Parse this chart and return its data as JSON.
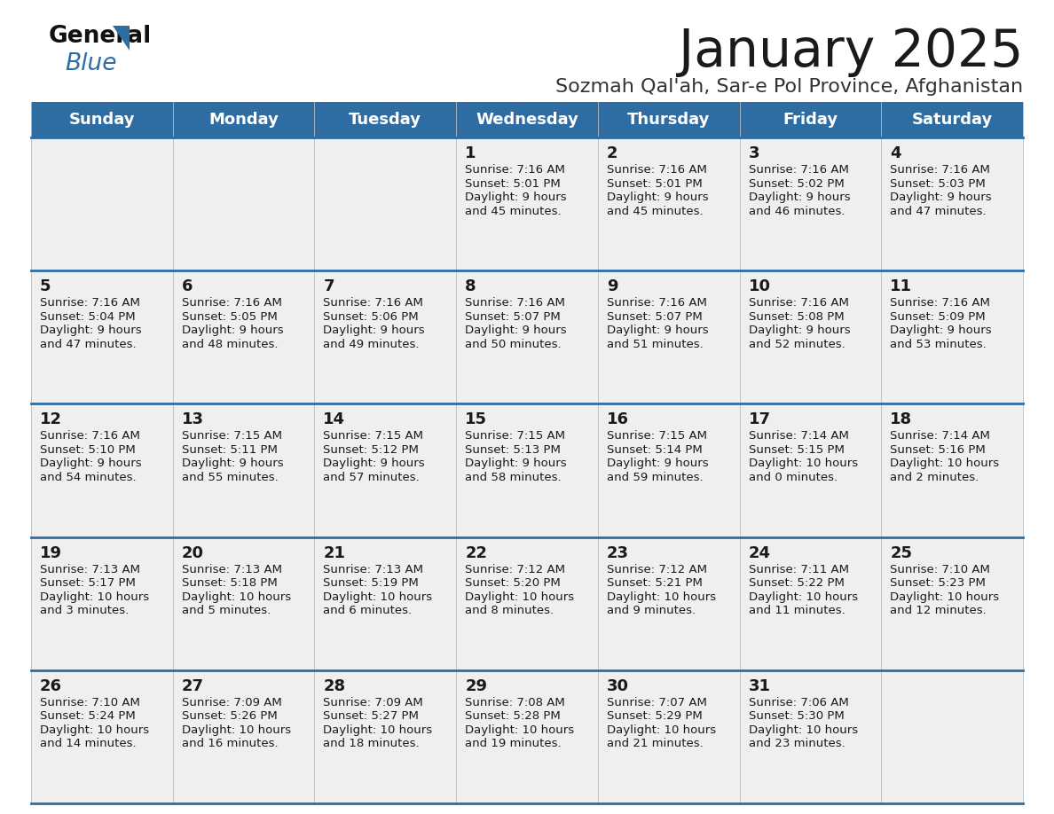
{
  "title": "January 2025",
  "subtitle": "Sozmah Qal'ah, Sar-e Pol Province, Afghanistan",
  "days_of_week": [
    "Sunday",
    "Monday",
    "Tuesday",
    "Wednesday",
    "Thursday",
    "Friday",
    "Saturday"
  ],
  "header_bg": "#2e6da4",
  "header_text": "#ffffff",
  "row_bg": "#efefef",
  "separator_color": "#2e6da4",
  "day_num_color": "#1a1a1a",
  "cell_text_color": "#1a1a1a",
  "title_color": "#1a1a1a",
  "subtitle_color": "#333333",
  "logo_general_color": "#111111",
  "logo_blue_color": "#2e6da4",
  "logo_triangle_color": "#2e6da4",
  "calendar": [
    [
      {
        "day": "",
        "sunrise": "",
        "sunset": "",
        "hours": "",
        "minutes": ""
      },
      {
        "day": "",
        "sunrise": "",
        "sunset": "",
        "hours": "",
        "minutes": ""
      },
      {
        "day": "",
        "sunrise": "",
        "sunset": "",
        "hours": "",
        "minutes": ""
      },
      {
        "day": "1",
        "sunrise": "7:16 AM",
        "sunset": "5:01 PM",
        "hours": "9",
        "minutes": "45"
      },
      {
        "day": "2",
        "sunrise": "7:16 AM",
        "sunset": "5:01 PM",
        "hours": "9",
        "minutes": "45"
      },
      {
        "day": "3",
        "sunrise": "7:16 AM",
        "sunset": "5:02 PM",
        "hours": "9",
        "minutes": "46"
      },
      {
        "day": "4",
        "sunrise": "7:16 AM",
        "sunset": "5:03 PM",
        "hours": "9",
        "minutes": "47"
      }
    ],
    [
      {
        "day": "5",
        "sunrise": "7:16 AM",
        "sunset": "5:04 PM",
        "hours": "9",
        "minutes": "47"
      },
      {
        "day": "6",
        "sunrise": "7:16 AM",
        "sunset": "5:05 PM",
        "hours": "9",
        "minutes": "48"
      },
      {
        "day": "7",
        "sunrise": "7:16 AM",
        "sunset": "5:06 PM",
        "hours": "9",
        "minutes": "49"
      },
      {
        "day": "8",
        "sunrise": "7:16 AM",
        "sunset": "5:07 PM",
        "hours": "9",
        "minutes": "50"
      },
      {
        "day": "9",
        "sunrise": "7:16 AM",
        "sunset": "5:07 PM",
        "hours": "9",
        "minutes": "51"
      },
      {
        "day": "10",
        "sunrise": "7:16 AM",
        "sunset": "5:08 PM",
        "hours": "9",
        "minutes": "52"
      },
      {
        "day": "11",
        "sunrise": "7:16 AM",
        "sunset": "5:09 PM",
        "hours": "9",
        "minutes": "53"
      }
    ],
    [
      {
        "day": "12",
        "sunrise": "7:16 AM",
        "sunset": "5:10 PM",
        "hours": "9",
        "minutes": "54"
      },
      {
        "day": "13",
        "sunrise": "7:15 AM",
        "sunset": "5:11 PM",
        "hours": "9",
        "minutes": "55"
      },
      {
        "day": "14",
        "sunrise": "7:15 AM",
        "sunset": "5:12 PM",
        "hours": "9",
        "minutes": "57"
      },
      {
        "day": "15",
        "sunrise": "7:15 AM",
        "sunset": "5:13 PM",
        "hours": "9",
        "minutes": "58"
      },
      {
        "day": "16",
        "sunrise": "7:15 AM",
        "sunset": "5:14 PM",
        "hours": "9",
        "minutes": "59"
      },
      {
        "day": "17",
        "sunrise": "7:14 AM",
        "sunset": "5:15 PM",
        "hours": "10",
        "minutes": "0"
      },
      {
        "day": "18",
        "sunrise": "7:14 AM",
        "sunset": "5:16 PM",
        "hours": "10",
        "minutes": "2"
      }
    ],
    [
      {
        "day": "19",
        "sunrise": "7:13 AM",
        "sunset": "5:17 PM",
        "hours": "10",
        "minutes": "3"
      },
      {
        "day": "20",
        "sunrise": "7:13 AM",
        "sunset": "5:18 PM",
        "hours": "10",
        "minutes": "5"
      },
      {
        "day": "21",
        "sunrise": "7:13 AM",
        "sunset": "5:19 PM",
        "hours": "10",
        "minutes": "6"
      },
      {
        "day": "22",
        "sunrise": "7:12 AM",
        "sunset": "5:20 PM",
        "hours": "10",
        "minutes": "8"
      },
      {
        "day": "23",
        "sunrise": "7:12 AM",
        "sunset": "5:21 PM",
        "hours": "10",
        "minutes": "9"
      },
      {
        "day": "24",
        "sunrise": "7:11 AM",
        "sunset": "5:22 PM",
        "hours": "10",
        "minutes": "11"
      },
      {
        "day": "25",
        "sunrise": "7:10 AM",
        "sunset": "5:23 PM",
        "hours": "10",
        "minutes": "12"
      }
    ],
    [
      {
        "day": "26",
        "sunrise": "7:10 AM",
        "sunset": "5:24 PM",
        "hours": "10",
        "minutes": "14"
      },
      {
        "day": "27",
        "sunrise": "7:09 AM",
        "sunset": "5:26 PM",
        "hours": "10",
        "minutes": "16"
      },
      {
        "day": "28",
        "sunrise": "7:09 AM",
        "sunset": "5:27 PM",
        "hours": "10",
        "minutes": "18"
      },
      {
        "day": "29",
        "sunrise": "7:08 AM",
        "sunset": "5:28 PM",
        "hours": "10",
        "minutes": "19"
      },
      {
        "day": "30",
        "sunrise": "7:07 AM",
        "sunset": "5:29 PM",
        "hours": "10",
        "minutes": "21"
      },
      {
        "day": "31",
        "sunrise": "7:06 AM",
        "sunset": "5:30 PM",
        "hours": "10",
        "minutes": "23"
      },
      {
        "day": "",
        "sunrise": "",
        "sunset": "",
        "hours": "",
        "minutes": ""
      }
    ]
  ]
}
